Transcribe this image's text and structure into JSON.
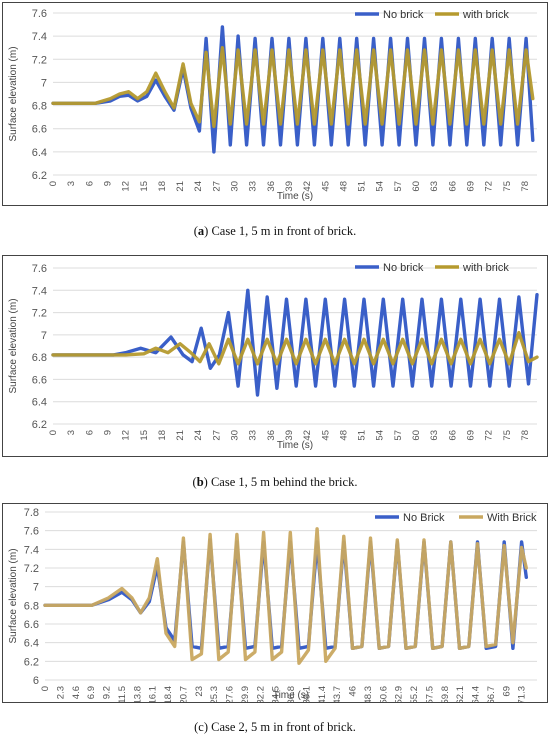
{
  "colors": {
    "no_brick": "#3a5fc8",
    "with_brick": "#b59a2e",
    "grid": "#dcdcdc",
    "axis_text": "#555555"
  },
  "chart_data": [
    {
      "type": "line",
      "caption_letter": "a",
      "caption_text": "Case 1, 5 m in front of brick.",
      "xlabel": "Time (s)",
      "ylabel": "Surface elevation (m)",
      "ylim": [
        6.2,
        7.6
      ],
      "yticks": [
        "6.2",
        "6.4",
        "6.6",
        "6.8",
        "7",
        "7.2",
        "7.4",
        "7.6"
      ],
      "xticks": [
        "0",
        "3",
        "6",
        "9",
        "12",
        "15",
        "18",
        "21",
        "24",
        "27",
        "30",
        "33",
        "36",
        "39",
        "42",
        "45",
        "48",
        "51",
        "54",
        "57",
        "60",
        "63",
        "66",
        "69",
        "72",
        "75",
        "78"
      ],
      "xlim": [
        0,
        80
      ],
      "legend_position": "top-right",
      "series": [
        {
          "name": "No brick",
          "color": "#3a5fc8",
          "x": [
            0,
            7,
            9.5,
            11,
            12.5,
            14,
            15.5,
            17,
            18.5,
            20,
            21.5,
            22.8,
            24.2,
            25.3,
            26.6,
            28,
            29.3,
            30.6,
            32,
            33.4,
            34.8,
            36.2,
            37.6,
            39,
            40.4,
            41.8,
            43.2,
            44.6,
            46,
            47.4,
            48.8,
            50.2,
            51.6,
            53,
            54.4,
            55.8,
            57.2,
            58.6,
            60,
            61.4,
            62.8,
            64.2,
            65.6,
            67,
            68.4,
            69.8,
            71.2,
            72.6,
            74,
            75.4,
            76.8,
            78.2,
            79.3
          ],
          "y": [
            6.82,
            6.82,
            6.84,
            6.88,
            6.89,
            6.84,
            6.88,
            7.02,
            6.88,
            6.76,
            7.12,
            6.78,
            6.58,
            7.38,
            6.4,
            7.48,
            6.46,
            7.4,
            6.46,
            7.38,
            6.46,
            7.38,
            6.46,
            7.38,
            6.46,
            7.38,
            6.46,
            7.38,
            6.46,
            7.38,
            6.46,
            7.38,
            6.46,
            7.38,
            6.46,
            7.38,
            6.46,
            7.38,
            6.46,
            7.38,
            6.46,
            7.38,
            6.46,
            7.38,
            6.46,
            7.38,
            6.46,
            7.38,
            6.46,
            7.38,
            6.46,
            7.38,
            6.5
          ]
        },
        {
          "name": "with brick",
          "color": "#b59a2e",
          "x": [
            0,
            7,
            9.5,
            11,
            12.5,
            14,
            15.5,
            17,
            18.5,
            20,
            21.5,
            22.8,
            24.2,
            25.3,
            26.6,
            28,
            29.3,
            30.6,
            32,
            33.4,
            34.8,
            36.2,
            37.6,
            39,
            40.4,
            41.8,
            43.2,
            44.6,
            46,
            47.4,
            48.8,
            50.2,
            51.6,
            53,
            54.4,
            55.8,
            57.2,
            58.6,
            60,
            61.4,
            62.8,
            64.2,
            65.6,
            67,
            68.4,
            69.8,
            71.2,
            72.6,
            74,
            75.4,
            76.8,
            78.2,
            79.3
          ],
          "y": [
            6.82,
            6.82,
            6.86,
            6.9,
            6.92,
            6.86,
            6.92,
            7.08,
            6.92,
            6.78,
            7.16,
            6.82,
            6.66,
            7.26,
            6.62,
            7.3,
            6.64,
            7.28,
            6.64,
            7.28,
            6.64,
            7.28,
            6.64,
            7.28,
            6.64,
            7.28,
            6.64,
            7.28,
            6.64,
            7.28,
            6.64,
            7.28,
            6.64,
            7.28,
            6.64,
            7.28,
            6.64,
            7.28,
            6.64,
            7.28,
            6.64,
            7.28,
            6.64,
            7.28,
            6.64,
            7.28,
            6.64,
            7.28,
            6.64,
            7.28,
            6.64,
            7.28,
            6.86
          ]
        }
      ]
    },
    {
      "type": "line",
      "caption_letter": "b",
      "caption_text": "Case 1, 5 m behind the brick.",
      "xlabel": "Time (s)",
      "ylabel": "Surface elevation (m)",
      "ylim": [
        6.2,
        7.6
      ],
      "yticks": [
        "6.2",
        "6.4",
        "6.6",
        "6.8",
        "7",
        "7.2",
        "7.4",
        "7.6"
      ],
      "xticks": [
        "0",
        "3",
        "6",
        "9",
        "12",
        "15",
        "18",
        "21",
        "24",
        "27",
        "30",
        "33",
        "36",
        "39",
        "42",
        "45",
        "48",
        "51",
        "54",
        "57",
        "60",
        "63",
        "66",
        "69",
        "72",
        "75",
        "78"
      ],
      "xlim": [
        0,
        80
      ],
      "legend_position": "top-right",
      "series": [
        {
          "name": "No brick",
          "color": "#3a5fc8",
          "x": [
            0,
            10,
            12,
            14.5,
            17,
            19.5,
            21.5,
            23,
            24.5,
            26,
            27.5,
            29,
            30.6,
            32.2,
            33.8,
            35.4,
            37,
            38.6,
            40.2,
            41.8,
            43.4,
            45,
            46.6,
            48.2,
            49.8,
            51.4,
            53,
            54.6,
            56.2,
            57.8,
            59.4,
            61,
            62.6,
            64.2,
            65.8,
            67.4,
            69,
            70.6,
            72.2,
            73.8,
            75.4,
            77,
            78.6,
            80
          ],
          "y": [
            6.82,
            6.82,
            6.84,
            6.88,
            6.84,
            6.98,
            6.82,
            6.76,
            7.06,
            6.7,
            6.82,
            7.2,
            6.54,
            7.4,
            6.46,
            7.34,
            6.52,
            7.32,
            6.54,
            7.32,
            6.54,
            7.32,
            6.54,
            7.32,
            6.54,
            7.32,
            6.54,
            7.32,
            6.54,
            7.32,
            6.54,
            7.32,
            6.54,
            7.32,
            6.54,
            7.32,
            6.54,
            7.32,
            6.54,
            7.32,
            6.54,
            7.34,
            6.56,
            7.36
          ]
        },
        {
          "name": "with brick",
          "color": "#b59a2e",
          "x": [
            0,
            12,
            15,
            17,
            19,
            21,
            22.8,
            24.3,
            25.8,
            27.4,
            29,
            30.6,
            32.2,
            33.8,
            35.4,
            37,
            38.6,
            40.2,
            41.8,
            43.4,
            45,
            46.6,
            48.2,
            49.8,
            51.4,
            53,
            54.6,
            56.2,
            57.8,
            59.4,
            61,
            62.6,
            64.2,
            65.8,
            67.4,
            69,
            70.6,
            72.2,
            73.8,
            75.4,
            77,
            78.6,
            80
          ],
          "y": [
            6.82,
            6.82,
            6.83,
            6.88,
            6.84,
            6.92,
            6.84,
            6.76,
            6.92,
            6.74,
            6.96,
            6.74,
            6.96,
            6.74,
            6.96,
            6.74,
            6.96,
            6.74,
            6.96,
            6.74,
            6.96,
            6.74,
            6.96,
            6.74,
            6.96,
            6.74,
            6.96,
            6.74,
            6.96,
            6.74,
            6.96,
            6.74,
            6.96,
            6.74,
            6.96,
            6.74,
            6.96,
            6.74,
            6.96,
            6.74,
            7.02,
            6.76,
            6.8
          ]
        }
      ]
    },
    {
      "type": "line",
      "caption_letter": "c",
      "caption_text": "Case 2, 5 m in front of brick.",
      "xlabel": "Time (s)",
      "ylabel": "Surface elevation (m)",
      "ylim": [
        6,
        7.8
      ],
      "yticks": [
        "6",
        "6.2",
        "6.4",
        "6.6",
        "6.8",
        "7",
        "7.2",
        "7.4",
        "7.6",
        "7.8"
      ],
      "xticks": [
        "0",
        "2.3",
        "4.6",
        "6.9",
        "9.2",
        "11.5",
        "13.8",
        "16.1",
        "18.4",
        "20.7",
        "23",
        "25.3",
        "27.6",
        "29.9",
        "32.2",
        "34.5",
        "36.8",
        "39.1",
        "41.4",
        "43.7",
        "46",
        "48.3",
        "50.6",
        "52.9",
        "55.2",
        "57.5",
        "59.8",
        "62.1",
        "64.4",
        "66.7",
        "69",
        "71.3"
      ],
      "xlim": [
        0,
        73.6
      ],
      "legend_position": "top-right",
      "series": [
        {
          "name": "No Brick",
          "color": "#3a5fc8",
          "x": [
            0,
            7,
            9.5,
            11.5,
            13,
            14.3,
            15.6,
            16.8,
            18.1,
            19.4,
            20.7,
            22,
            23.4,
            24.7,
            26,
            27.4,
            28.7,
            30,
            31.4,
            32.7,
            34,
            35.4,
            36.7,
            38,
            39.4,
            40.7,
            42,
            43.4,
            44.7,
            46,
            47.4,
            48.7,
            50,
            51.4,
            52.7,
            54,
            55.4,
            56.7,
            58,
            59.4,
            60.7,
            62,
            63.4,
            64.7,
            66,
            67.4,
            68.7,
            70,
            71.3,
            72
          ],
          "y": [
            6.8,
            6.8,
            6.86,
            6.94,
            6.86,
            6.72,
            6.84,
            7.22,
            6.56,
            6.42,
            7.48,
            6.36,
            6.34,
            7.5,
            6.34,
            6.36,
            7.48,
            6.34,
            6.36,
            7.48,
            6.34,
            6.36,
            7.48,
            6.34,
            6.36,
            7.48,
            6.34,
            6.36,
            7.48,
            6.34,
            6.36,
            7.48,
            6.34,
            6.36,
            7.48,
            6.34,
            6.36,
            7.48,
            6.34,
            6.36,
            7.48,
            6.34,
            6.36,
            7.48,
            6.34,
            6.36,
            7.48,
            6.34,
            7.48,
            7.1
          ]
        },
        {
          "name": "With Brick",
          "color": "#c9a860",
          "x": [
            0,
            7,
            9.5,
            11.5,
            13,
            14.3,
            15.6,
            16.8,
            18.1,
            19.4,
            20.7,
            22,
            23.4,
            24.7,
            26,
            27.4,
            28.7,
            30,
            31.4,
            32.7,
            34,
            35.4,
            36.7,
            38,
            39.4,
            40.7,
            42,
            43.4,
            44.7,
            46,
            47.4,
            48.7,
            50,
            51.4,
            52.7,
            54,
            55.4,
            56.7,
            58,
            59.4,
            60.7,
            62,
            63.4,
            64.7,
            66,
            67.4,
            68.7,
            70,
            71.3,
            72
          ],
          "y": [
            6.8,
            6.8,
            6.88,
            6.98,
            6.88,
            6.72,
            6.88,
            7.3,
            6.5,
            6.36,
            7.52,
            6.22,
            6.28,
            7.56,
            6.22,
            6.3,
            7.56,
            6.22,
            6.3,
            7.58,
            6.22,
            6.3,
            7.58,
            6.18,
            6.32,
            7.62,
            6.2,
            6.34,
            7.54,
            6.34,
            6.36,
            7.52,
            6.34,
            6.36,
            7.5,
            6.34,
            6.36,
            7.5,
            6.34,
            6.36,
            7.48,
            6.34,
            6.36,
            7.46,
            6.36,
            6.38,
            7.44,
            6.4,
            7.42,
            7.2
          ]
        }
      ]
    }
  ]
}
